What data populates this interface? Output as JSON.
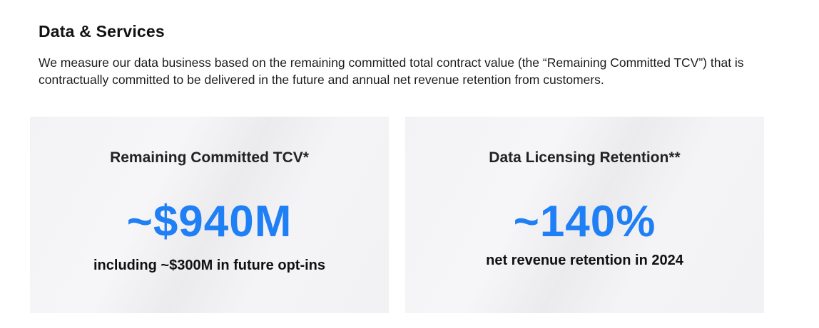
{
  "section": {
    "title": "Data & Services",
    "description": "We measure our data business based on the remaining committed total contract value (the “Remaining Committed TCV”) that is contractually committed to be delivered in the future and annual net revenue retention from customers."
  },
  "cards": [
    {
      "title": "Remaining Committed TCV*",
      "value": "~$940M",
      "subtitle": "including ~$300M in future opt-ins"
    },
    {
      "title": "Data Licensing Retention**",
      "value": "~140%",
      "subtitle": "net revenue retention in 2024"
    }
  ],
  "colors": {
    "accent": "#1f7ff5",
    "card_background": "#f3f3f5",
    "text": "#111111"
  }
}
